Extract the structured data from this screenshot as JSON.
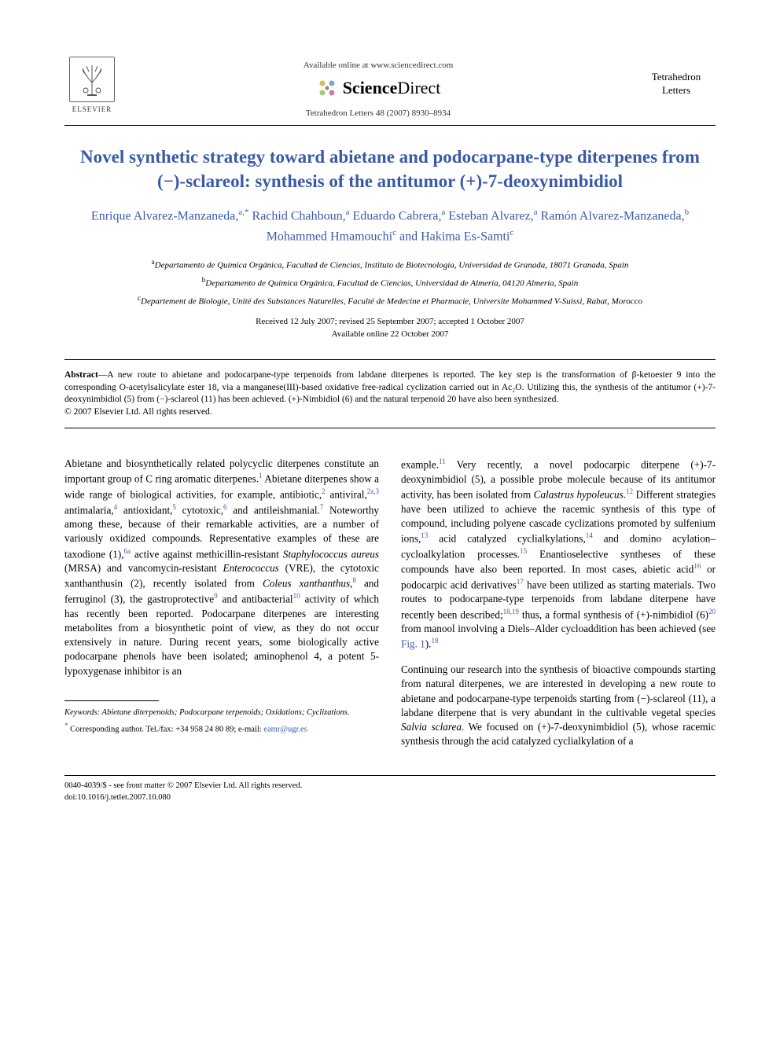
{
  "colors": {
    "link": "#3a5aa8",
    "text": "#000000",
    "background": "#ffffff",
    "rule": "#000000",
    "gray_text": "#333333"
  },
  "typography": {
    "body_font": "Georgia, 'Times New Roman', serif",
    "title_fontsize": 23,
    "author_fontsize": 16,
    "body_fontsize": 13.2,
    "abstract_fontsize": 11.5,
    "footnote_fontsize": 10.5
  },
  "header": {
    "publisher": "ELSEVIER",
    "available_text": "Available online at www.sciencedirect.com",
    "sd_brand_bold": "Science",
    "sd_brand_plain": "Direct",
    "citation": "Tetrahedron Letters 48 (2007) 8930–8934",
    "journal_line1": "Tetrahedron",
    "journal_line2": "Letters"
  },
  "article": {
    "title": "Novel synthetic strategy toward abietane and podocarpane-type diterpenes from (−)-sclareol: synthesis of the antitumor (+)-7-deoxynimbidiol",
    "authors_html": "Enrique Alvarez-Manzaneda,<sup>a,*</sup> Rachid Chahboun,<sup>a</sup> Eduardo Cabrera,<sup>a</sup> Esteban Alvarez,<sup>a</sup> Ramón Alvarez-Manzaneda,<sup>b</sup> Mohammed Hmamouchi<sup>c</sup> and Hakima Es-Samti<sup>c</sup>",
    "affiliations": [
      "<sup>a</sup>Departamento de Química Orgánica, Facultad de Ciencias, Instituto de Biotecnología, Universidad de Granada, 18071 Granada, Spain",
      "<sup>b</sup>Departamento de Química Orgánica, Facultad de Ciencias, Universidad de Almería, 04120 Almería, Spain",
      "<sup>c</sup>Departement de Biologie, Unité des Substances Naturelles, Faculté de Medecine et Pharmacie, Universite Mohammed V-Suissi, Rabat, Morocco"
    ],
    "dates_line1": "Received 12 July 2007; revised 25 September 2007; accepted 1 October 2007",
    "dates_line2": "Available online 22 October 2007"
  },
  "abstract": {
    "label": "Abstract",
    "text": "—A new route to abietane and podocarpane-type terpenoids from labdane diterpenes is reported. The key step is the transformation of β-ketoester 9 into the corresponding O-acetylsalicylate ester 18, via a manganese(III)-based oxidative free-radical cyclization carried out in Ac₂O. Utilizing this, the synthesis of the antitumor (+)-7-deoxynimbidiol (5) from (−)-sclareol (11) has been achieved. (+)-Nimbidiol (6) and the natural terpenoid 20 have also been synthesized.",
    "copyright": "© 2007 Elsevier Ltd. All rights reserved."
  },
  "body": {
    "left_paragraphs": [
      "Abietane and biosynthetically related polycyclic diterpenes constitute an important group of C ring aromatic diterpenes.<sup>1</sup> Abietane diterpenes show a wide range of biological activities, for example, antibiotic,<sup>2</sup> antiviral,<sup>2a,3</sup> antimalaria,<sup>4</sup> antioxidant,<sup>5</sup> cytotoxic,<sup>6</sup> and antileishmanial.<sup>7</sup> Noteworthy among these, because of their remarkable activities, are a number of variously oxidized compounds. Representative examples of these are taxodione (1),<sup>6a</sup> active against methicillin-resistant <span class=\"ital\">Staphylococcus aureus</span> (MRSA) and vancomycin-resistant <span class=\"ital\">Enterococcus</span> (VRE), the cytotoxic xanthanthusin (2), recently isolated from <span class=\"ital\">Coleus xanthanthus</span>,<sup>8</sup> and ferruginol (3), the gastroprotective<sup>9</sup> and antibacterial<sup>10</sup> activity of which has recently been reported. Podocarpane diterpenes are interesting metabolites from a biosynthetic point of view, as they do not occur extensively in nature. During recent years, some biologically active podocarpane phenols have been isolated; aminophenol 4, a potent 5-lypoxygenase inhibitor is an"
    ],
    "right_paragraphs": [
      "example.<sup>11</sup> Very recently, a novel podocarpic diterpene (+)-7-deoxynimbidiol (5), a possible probe molecule because of its antitumor activity, has been isolated from <span class=\"ital\">Calastrus hypoleucus</span>.<sup>12</sup> Different strategies have been utilized to achieve the racemic synthesis of this type of compound, including polyene cascade cyclizations promoted by sulfenium ions,<sup>13</sup> acid catalyzed cyclialkylations,<sup>14</sup> and domino acylation–cycloalkylation processes.<sup>15</sup> Enantioselective syntheses of these compounds have also been reported. In most cases, abietic acid<sup>16</sup> or podocarpic acid derivatives<sup>17</sup> have been utilized as starting materials. Two routes to podocarpane-type terpenoids from labdane diterpene have recently been described;<sup>18,19</sup> thus, a formal synthesis of (+)-nimbidiol (6)<sup>20</sup> from manool involving a Diels–Alder cycloaddition has been achieved (see <span class=\"fig-link\">Fig. 1</span>).<sup>18</sup>",
      "Continuing our research into the synthesis of bioactive compounds starting from natural diterpenes, we are interested in developing a new route to abietane and podocarpane-type terpenoids starting from (−)-sclareol (11), a labdane diterpene that is very abundant in the cultivable vegetal species <span class=\"ital\">Salvia sclarea</span>. We focused on (+)-7-deoxynimbidiol (5), whose racemic synthesis through the acid catalyzed cyclialkylation of a"
    ]
  },
  "footnotes": {
    "keywords_label": "Keywords:",
    "keywords_text": " Abietane diterpenoids; Podocarpane terpenoids; Oxidations; Cyclizations.",
    "corr_symbol": "*",
    "corr_text": " Corresponding author. Tel./fax: +34 958 24 80 89; e-mail: ",
    "corr_email": "eamr@ugr.es"
  },
  "footer": {
    "line1": "0040-4039/$ - see front matter © 2007 Elsevier Ltd. All rights reserved.",
    "line2": "doi:10.1016/j.tetlet.2007.10.080"
  }
}
